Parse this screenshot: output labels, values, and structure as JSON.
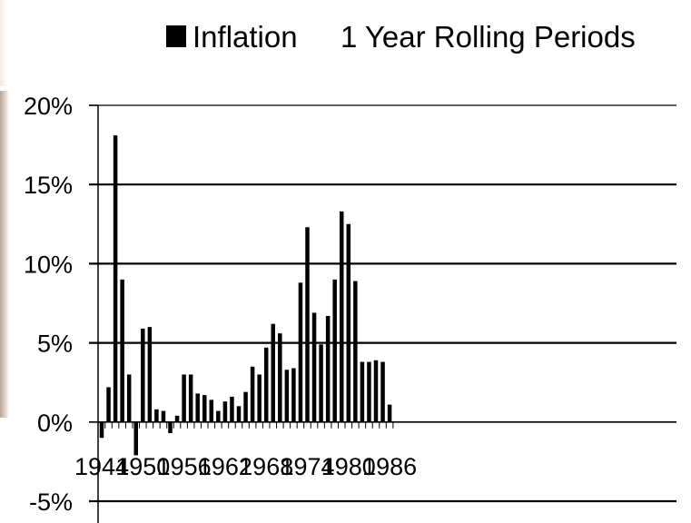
{
  "chart_data": {
    "type": "bar",
    "title": "1 Year Rolling Periods",
    "legend": {
      "entries": [
        "Inflation"
      ],
      "placement": "top"
    },
    "series": [
      {
        "name": "Inflation",
        "x": [
          1944,
          1945,
          1946,
          1947,
          1948,
          1949,
          1950,
          1951,
          1952,
          1953,
          1954,
          1955,
          1956,
          1957,
          1958,
          1959,
          1960,
          1961,
          1962,
          1963,
          1964,
          1965,
          1966,
          1967,
          1968,
          1969,
          1970,
          1971,
          1972,
          1973,
          1974,
          1975,
          1976,
          1977,
          1978,
          1979,
          1980,
          1981,
          1982,
          1983,
          1984,
          1985,
          1986
        ],
        "values": [
          -1.0,
          2.2,
          18.1,
          9.0,
          3.0,
          -2.1,
          5.9,
          6.0,
          0.8,
          0.7,
          -0.7,
          0.4,
          3.0,
          3.0,
          1.8,
          1.7,
          1.4,
          0.7,
          1.3,
          1.6,
          1.0,
          1.9,
          3.5,
          3.0,
          4.7,
          6.2,
          5.6,
          3.3,
          3.4,
          8.8,
          12.3,
          6.9,
          4.9,
          6.7,
          9.0,
          13.3,
          12.5,
          8.9,
          3.8,
          3.8,
          3.9,
          3.8,
          1.1
        ]
      }
    ],
    "x_tick_labels": [
      "1944",
      "1950",
      "1956",
      "1962",
      "1968",
      "1974",
      "1980",
      "1986"
    ],
    "y_tick_labels": [
      "-5%",
      "0%",
      "5%",
      "10%",
      "15%",
      "20%"
    ],
    "ylim": [
      -5,
      20
    ],
    "y_ticks": [
      -5,
      0,
      5,
      10,
      15,
      20
    ],
    "x_ticks": [
      1944,
      1950,
      1956,
      1962,
      1968,
      1974,
      1980,
      1986
    ],
    "grid": true,
    "bar_color": "#000000"
  }
}
